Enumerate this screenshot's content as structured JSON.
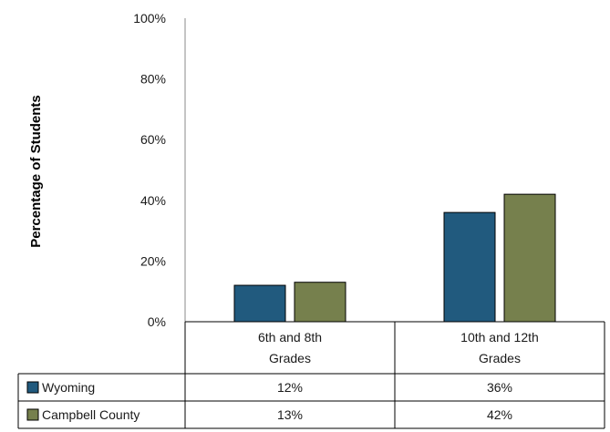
{
  "chart_data": {
    "type": "bar",
    "title": "",
    "xlabel": "",
    "ylabel": "Percentage of Students",
    "ylim": [
      0,
      100
    ],
    "yticks": [
      "0%",
      "20%",
      "40%",
      "60%",
      "80%",
      "100%"
    ],
    "categories": [
      {
        "line1": "6th and 8th",
        "line2": "Grades"
      },
      {
        "line1": "10th and 12th",
        "line2": "Grades"
      }
    ],
    "series": [
      {
        "name": "Wyoming",
        "color": "#215a7e",
        "values": [
          12,
          36
        ],
        "labels": [
          "12%",
          "36%"
        ]
      },
      {
        "name": "Campbell County",
        "color": "#76804d",
        "values": [
          13,
          42
        ],
        "labels": [
          "13%",
          "42%"
        ]
      }
    ],
    "legend": "data-table-left",
    "grid": false
  }
}
